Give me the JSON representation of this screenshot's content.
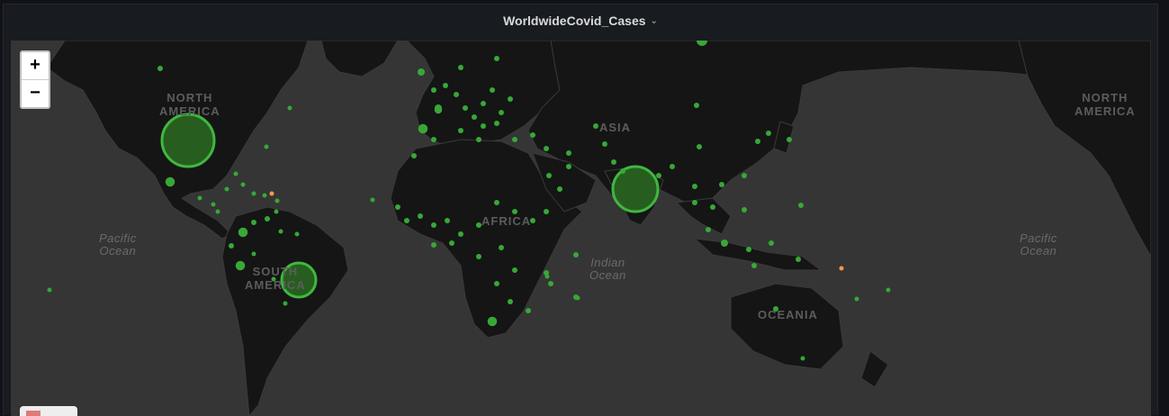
{
  "panel": {
    "title": "WorldwideCovid_Cases",
    "title_icon": "chevron-down-icon"
  },
  "map": {
    "zoom_in_label": "+",
    "zoom_out_label": "−",
    "colors": {
      "background": "#353535",
      "land": "#151515",
      "borders": "#3a3a3a",
      "marker": "#37a837",
      "marker_fill": "#2a6b22",
      "marker_alert": "#f2994a"
    },
    "labels": {
      "north_america_left": "NORTH\nAMERICA",
      "north_america_right": "NORTH\nAMERICA",
      "south_america": "SOUTH\nAMERICA",
      "asia": "ASIA",
      "africa": "AFRICA",
      "oceania": "OCEANIA",
      "pacific_left": "Pacific\nOcean",
      "pacific_right": "Pacific\nOcean",
      "indian": "Indian\nOcean"
    }
  }
}
